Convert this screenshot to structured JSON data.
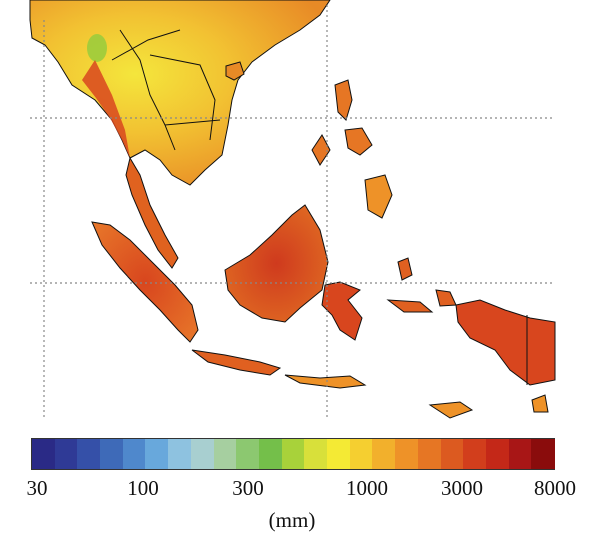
{
  "map": {
    "region": "Southeast Asia",
    "variable": "precipitation",
    "land_colors": {
      "dry_low": "#f2e23a",
      "mid": "#f0a028",
      "wet": "#e06020",
      "very_wet": "#cf3a1e",
      "peak": "#8a1414",
      "green_patch": "#9ccc3c"
    },
    "coastline_color": "#111111",
    "gridline_color": "#888888",
    "gridline_style": "dotted"
  },
  "colorbar": {
    "scale": "log",
    "range": [
      30,
      8000
    ],
    "ticks": [
      "30",
      "100",
      "300",
      "1000",
      "3000",
      "8000"
    ],
    "unit_label": "(mm)",
    "colors": [
      "#2a2a86",
      "#2f3a96",
      "#3550a8",
      "#3e6ab8",
      "#4f88cc",
      "#68a8dc",
      "#8ec2e0",
      "#a8cfd0",
      "#a6cfa0",
      "#8cc870",
      "#74bf4a",
      "#a8d23a",
      "#d8e03a",
      "#f4ea34",
      "#f5cf30",
      "#f2b02c",
      "#ee9228",
      "#e67624",
      "#dc5a20",
      "#d23e1c",
      "#c42818",
      "#a81616",
      "#8a0c0c"
    ]
  }
}
